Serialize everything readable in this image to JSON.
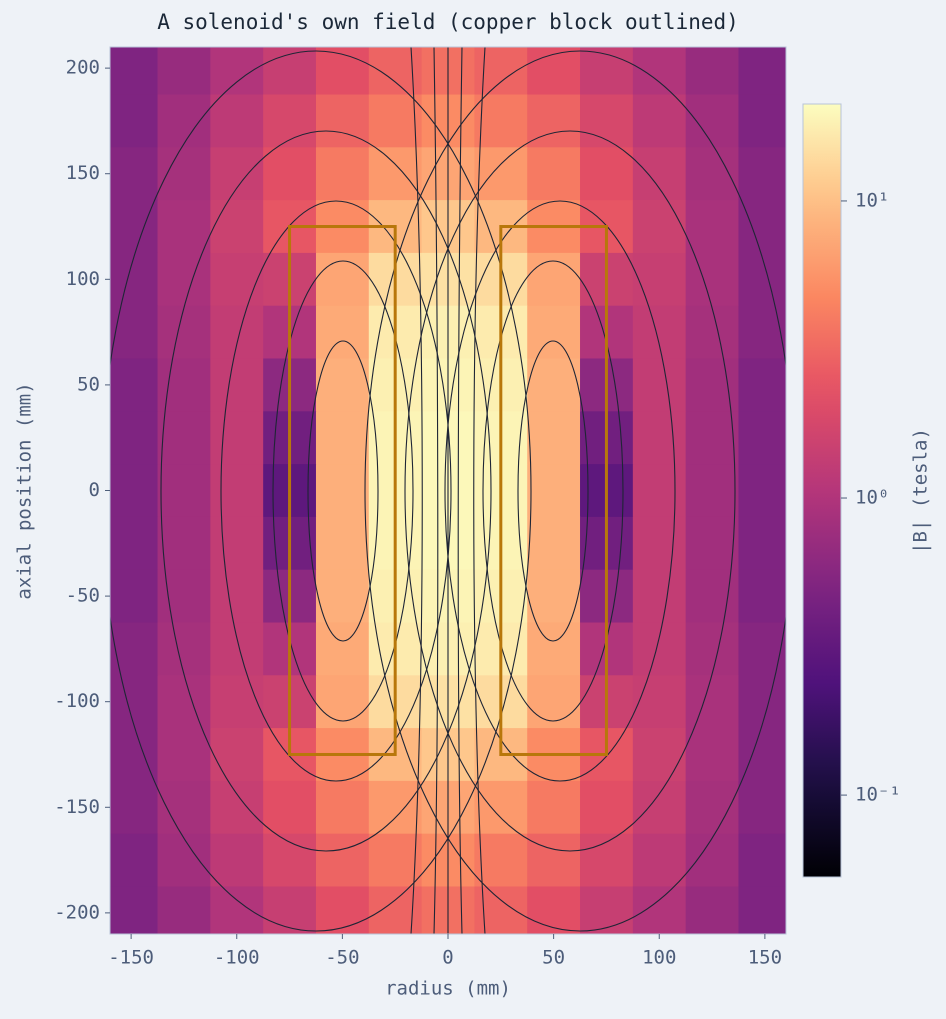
{
  "chart_data": {
    "type": "heatmap",
    "title": "A solenoid's own field (copper block outlined)",
    "x_label": "radius (mm)",
    "y_label": "axial position (mm)",
    "x": [
      -150,
      -125,
      -100,
      -75,
      -50,
      -25,
      0,
      25,
      50,
      75,
      100,
      125,
      150
    ],
    "y": [
      200,
      175,
      150,
      125,
      100,
      75,
      50,
      25,
      0,
      -25,
      -50,
      -75,
      -100,
      -125,
      -150,
      -175,
      -200
    ],
    "values": [
      [
        0.5,
        0.7,
        1,
        1.4,
        2.2,
        3,
        3.5,
        3,
        2.2,
        1.4,
        1,
        0.7,
        0.5
      ],
      [
        0.5,
        0.8,
        1.2,
        1.8,
        3,
        4,
        5,
        4,
        3,
        1.8,
        1.2,
        0.8,
        0.5
      ],
      [
        0.55,
        0.85,
        1.4,
        2.2,
        4,
        6,
        7,
        6,
        4,
        2.2,
        1.4,
        0.85,
        0.55
      ],
      [
        0.55,
        0.9,
        1.5,
        2.5,
        5,
        9,
        11,
        9,
        5,
        2.5,
        1.5,
        0.9,
        0.55
      ],
      [
        0.55,
        0.9,
        1.4,
        1.5,
        7,
        14,
        15,
        14,
        7,
        1.5,
        1.4,
        0.9,
        0.55
      ],
      [
        0.55,
        0.85,
        1.3,
        1,
        7.5,
        17,
        18,
        17,
        7.5,
        1,
        1.3,
        0.85,
        0.55
      ],
      [
        0.5,
        0.8,
        1.3,
        0.6,
        8,
        18,
        19,
        18,
        8,
        0.6,
        1.3,
        0.8,
        0.5
      ],
      [
        0.5,
        0.8,
        1.3,
        0.4,
        8,
        19,
        20,
        19,
        8,
        0.4,
        1.3,
        0.8,
        0.5
      ],
      [
        0.5,
        0.8,
        1.3,
        0.3,
        8,
        19,
        20,
        19,
        8,
        0.3,
        1.3,
        0.8,
        0.5
      ],
      [
        0.5,
        0.8,
        1.3,
        0.4,
        8,
        19,
        20,
        19,
        8,
        0.4,
        1.3,
        0.8,
        0.5
      ],
      [
        0.5,
        0.8,
        1.3,
        0.6,
        8,
        18,
        19,
        18,
        8,
        0.6,
        1.3,
        0.8,
        0.5
      ],
      [
        0.55,
        0.85,
        1.3,
        1,
        7.5,
        17,
        18,
        17,
        7.5,
        1,
        1.3,
        0.85,
        0.55
      ],
      [
        0.55,
        0.9,
        1.4,
        1.5,
        7,
        14,
        15,
        14,
        7,
        1.5,
        1.4,
        0.9,
        0.55
      ],
      [
        0.55,
        0.9,
        1.5,
        2.5,
        5,
        9,
        11,
        9,
        5,
        2.5,
        1.5,
        0.9,
        0.55
      ],
      [
        0.55,
        0.85,
        1.4,
        2.2,
        4,
        6,
        7,
        6,
        4,
        2.2,
        1.4,
        0.85,
        0.55
      ],
      [
        0.5,
        0.8,
        1.2,
        1.8,
        3,
        4,
        5,
        4,
        3,
        1.8,
        1.2,
        0.8,
        0.5
      ],
      [
        0.5,
        0.7,
        1,
        1.4,
        2.2,
        3,
        3.5,
        3,
        2.2,
        1.4,
        1,
        0.7,
        0.5
      ]
    ],
    "xlim": [
      -160,
      160
    ],
    "ylim": [
      -210,
      210
    ],
    "xticks": [
      -150,
      -100,
      -50,
      0,
      50,
      100,
      150
    ],
    "yticks": [
      -200,
      -150,
      -100,
      -50,
      0,
      50,
      100,
      150,
      200
    ],
    "colormap": "magma",
    "color_scale": "log",
    "clim": [
      0.053,
      21.2
    ],
    "cticks": [
      {
        "value": 0.1,
        "label": "10⁻¹"
      },
      {
        "value": 1,
        "label": "10⁰"
      },
      {
        "value": 10,
        "label": "10¹"
      }
    ],
    "colorbar_label": "|B|  (tesla)",
    "shapes": [
      {
        "x": [
          -75,
          -25
        ],
        "y": [
          -125,
          125
        ]
      },
      {
        "x": [
          25,
          75
        ],
        "y": [
          -125,
          125
        ]
      }
    ],
    "shape_color": "#b8770b"
  }
}
